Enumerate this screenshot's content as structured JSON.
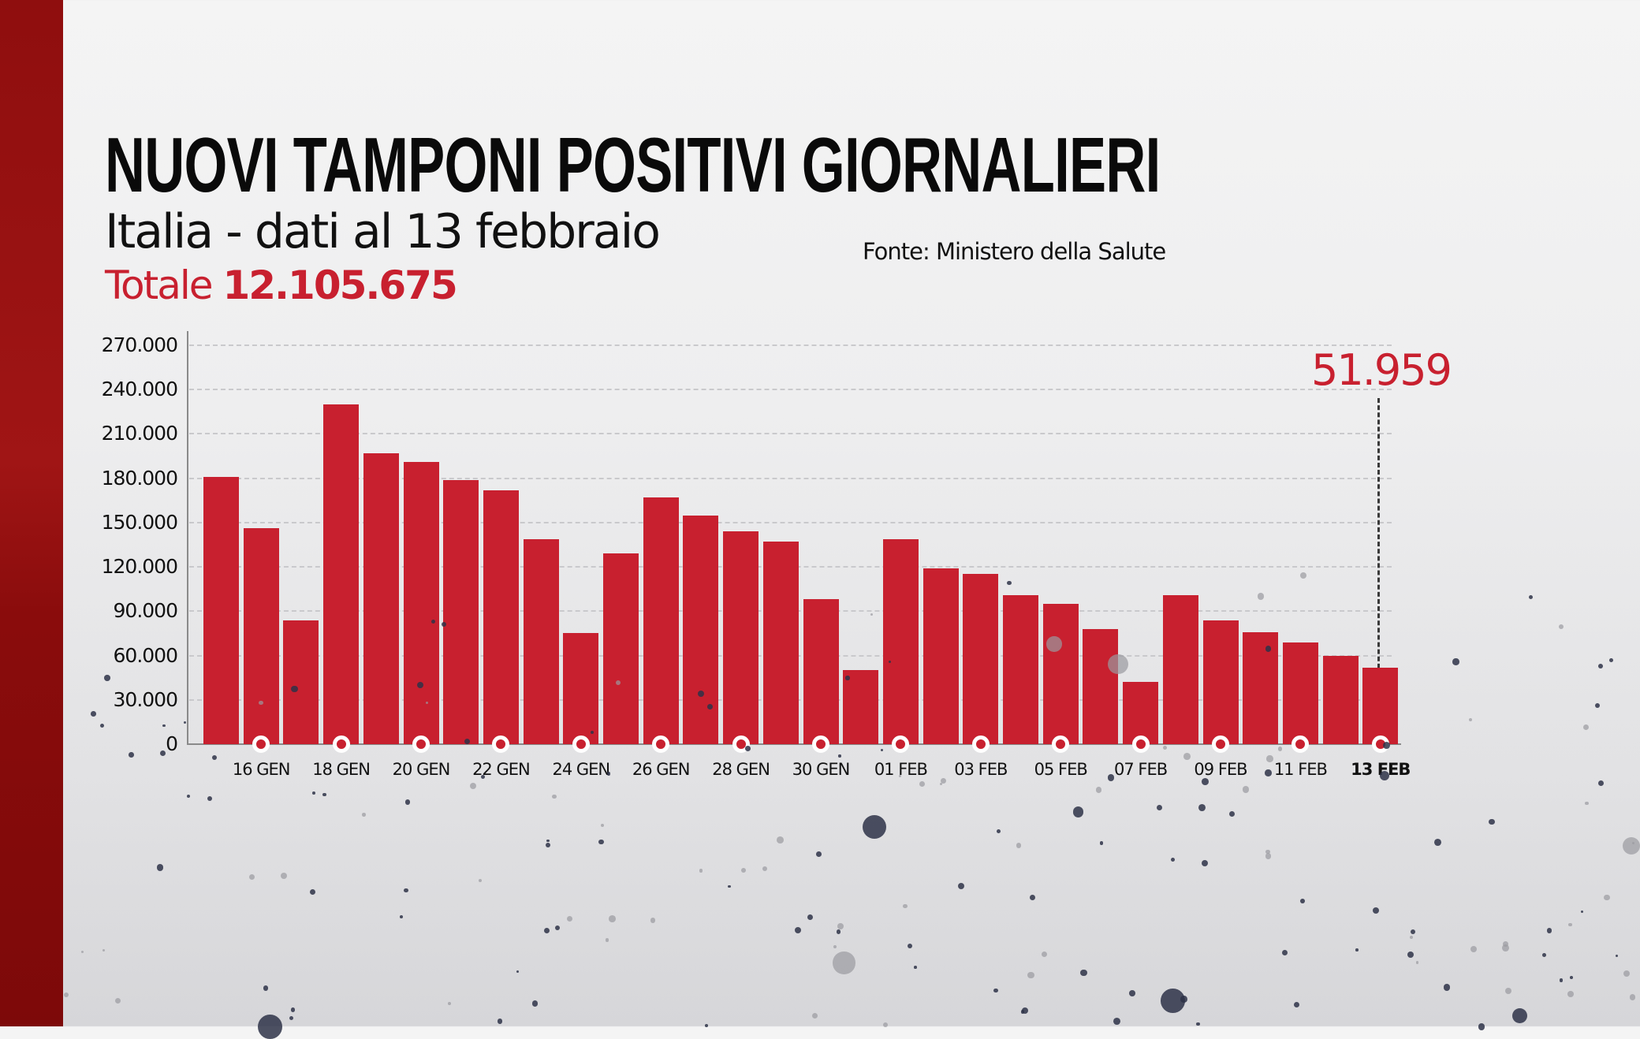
{
  "header": {
    "title": "NUOVI TAMPONI POSITIVI GIORNALIERI",
    "subtitle": "Italia - dati al 13 febbraio",
    "total_label": "Totale",
    "total_value": "12.105.675",
    "source": "Fonte: Ministero della Salute"
  },
  "colors": {
    "accent": "#c8202f",
    "side_strip": "#8f0e0e",
    "text": "#111111",
    "background": "#eeeeef"
  },
  "callout": {
    "value": "51.959",
    "date": "13 FEB"
  },
  "chart_data": {
    "type": "bar",
    "title": "NUOVI TAMPONI POSITIVI GIORNALIERI",
    "subtitle": "Italia - dati al 13 febbraio",
    "xlabel": "",
    "ylabel": "",
    "ylim": [
      0,
      270000
    ],
    "yticks": [
      0,
      30000,
      60000,
      90000,
      120000,
      150000,
      180000,
      210000,
      240000,
      270000
    ],
    "ytick_labels": [
      "0",
      "30.000",
      "60.000",
      "90.000",
      "120.000",
      "150.000",
      "180.000",
      "210.000",
      "240.000",
      "270.000"
    ],
    "grid": true,
    "legend": "none",
    "categories": [
      "15 GEN",
      "16 GEN",
      "17 GEN",
      "18 GEN",
      "19 GEN",
      "20 GEN",
      "21 GEN",
      "22 GEN",
      "23 GEN",
      "24 GEN",
      "25 GEN",
      "26 GEN",
      "27 GEN",
      "28 GEN",
      "29 GEN",
      "30 GEN",
      "31 GEN",
      "01 FEB",
      "02 FEB",
      "03 FEB",
      "04 FEB",
      "05 FEB",
      "06 FEB",
      "07 FEB",
      "08 FEB",
      "09 FEB",
      "10 FEB",
      "11 FEB",
      "12 FEB",
      "13 FEB"
    ],
    "visible_xtick_labels": [
      "16 GEN",
      "18 GEN",
      "20 GEN",
      "22 GEN",
      "24 GEN",
      "26 GEN",
      "28 GEN",
      "30 GEN",
      "01 FEB",
      "03 FEB",
      "05 FEB",
      "07 FEB",
      "09 FEB",
      "11 FEB",
      "13 FEB"
    ],
    "values": [
      181000,
      146000,
      84000,
      230000,
      197000,
      191000,
      179000,
      172000,
      139000,
      75000,
      129000,
      167000,
      155000,
      144000,
      137000,
      98000,
      50000,
      139000,
      119000,
      115000,
      101000,
      95000,
      78000,
      42000,
      101000,
      84000,
      76000,
      69000,
      60000,
      51959
    ],
    "annotations": [
      {
        "category": "13 FEB",
        "text": "51.959"
      }
    ],
    "total": "12.105.675",
    "source": "Fonte: Ministero della Salute"
  }
}
